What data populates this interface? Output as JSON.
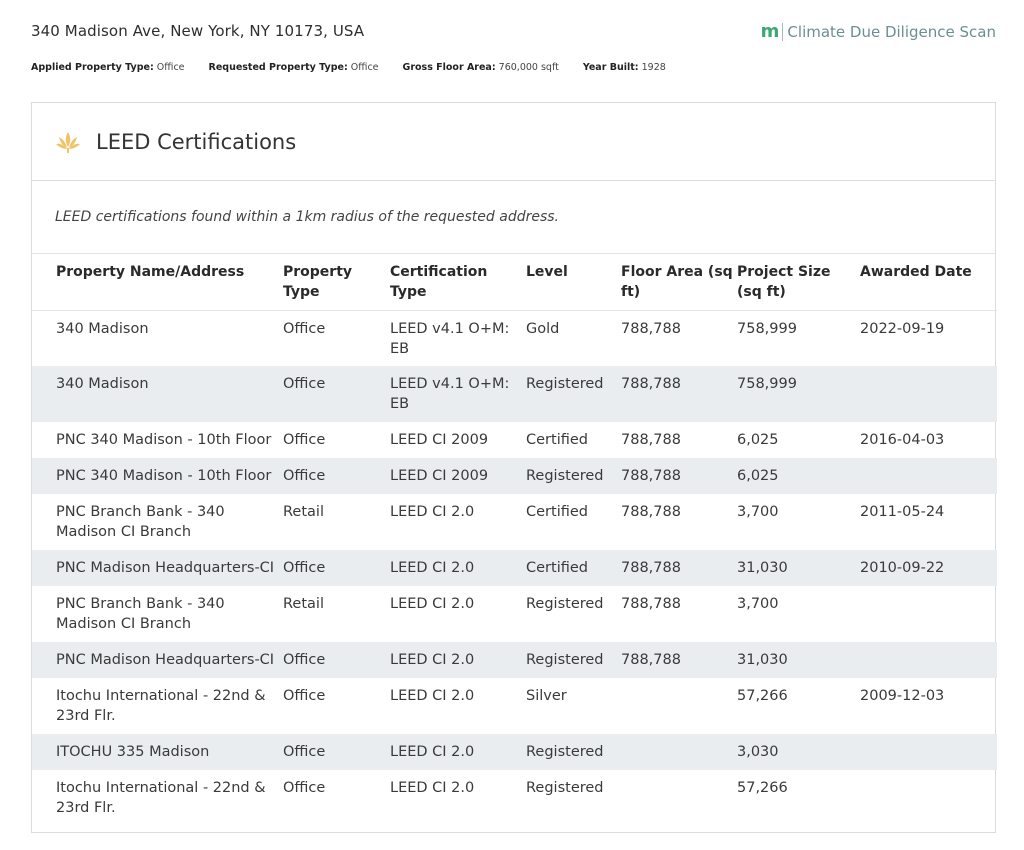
{
  "header": {
    "address": "340 Madison Ave, New York, NY 10173, USA",
    "brand_logo": "m",
    "brand_name": "Climate Due Diligence Scan",
    "brand_color": "#3aa873"
  },
  "meta": [
    {
      "key": "Applied Property Type:",
      "value": "Office"
    },
    {
      "key": "Requested Property Type:",
      "value": "Office"
    },
    {
      "key": "Gross Floor Area:",
      "value": "760,000 sqft"
    },
    {
      "key": "Year Built:",
      "value": "1928"
    }
  ],
  "section": {
    "icon": "leed-leaf-icon",
    "icon_color": "#f0c36b",
    "title": "LEED Certifications",
    "note": "LEED certifications found within a 1km radius of the requested address."
  },
  "table": {
    "columns": [
      "Property Name/Address",
      "Property Type",
      "Certification Type",
      "Level",
      "Floor Area (sq ft)",
      "Project Size (sq ft)",
      "Awarded Date"
    ],
    "rows": [
      [
        "340 Madison",
        "Office",
        "LEED v4.1 O+M: EB",
        "Gold",
        "788,788",
        "758,999",
        "2022-09-19"
      ],
      [
        "340 Madison",
        "Office",
        "LEED v4.1 O+M: EB",
        "Registered",
        "788,788",
        "758,999",
        ""
      ],
      [
        "PNC 340 Madison - 10th Floor",
        "Office",
        "LEED CI 2009",
        "Certified",
        "788,788",
        "6,025",
        "2016-04-03"
      ],
      [
        "PNC 340 Madison - 10th Floor",
        "Office",
        "LEED CI 2009",
        "Registered",
        "788,788",
        "6,025",
        ""
      ],
      [
        "PNC Branch Bank - 340 Madison CI Branch",
        "Retail",
        "LEED CI 2.0",
        "Certified",
        "788,788",
        "3,700",
        "2011-05-24"
      ],
      [
        "PNC Madison Headquarters-CI",
        "Office",
        "LEED CI 2.0",
        "Certified",
        "788,788",
        "31,030",
        "2010-09-22"
      ],
      [
        "PNC Branch Bank - 340 Madison CI Branch",
        "Retail",
        "LEED CI 2.0",
        "Registered",
        "788,788",
        "3,700",
        ""
      ],
      [
        "PNC Madison Headquarters-CI",
        "Office",
        "LEED CI 2.0",
        "Registered",
        "788,788",
        "31,030",
        ""
      ],
      [
        "Itochu International - 22nd & 23rd Flr.",
        "Office",
        "LEED CI 2.0",
        "Silver",
        "",
        "57,266",
        "2009-12-03"
      ],
      [
        "ITOCHU 335 Madison",
        "Office",
        "LEED CI 2.0",
        "Registered",
        "",
        "3,030",
        ""
      ],
      [
        "Itochu International - 22nd & 23rd Flr.",
        "Office",
        "LEED CI 2.0",
        "Registered",
        "",
        "57,266",
        ""
      ]
    ],
    "row_line_counts": [
      2,
      2,
      1,
      1,
      2,
      1,
      2,
      1,
      2,
      1,
      2
    ]
  }
}
